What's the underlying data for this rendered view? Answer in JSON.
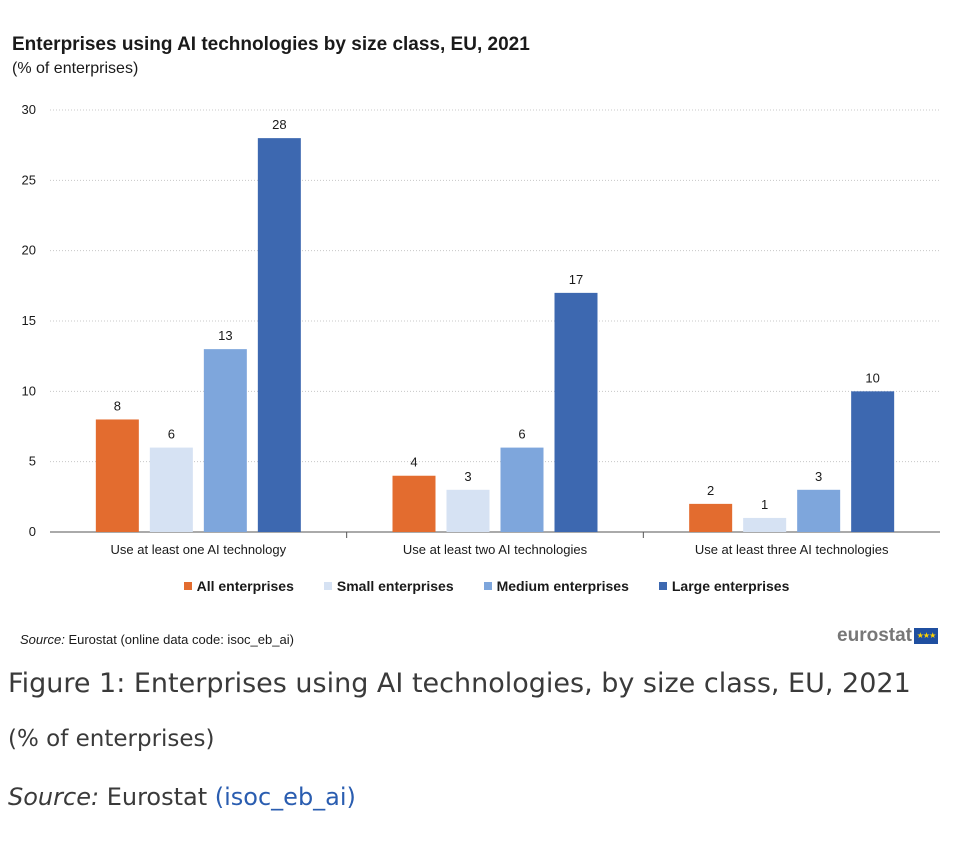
{
  "header": {
    "title": "Enterprises using AI technologies by size class, EU, 2021",
    "subtitle": "(% of enterprises)"
  },
  "chart_data": {
    "type": "bar",
    "title": "Enterprises using AI technologies by size class, EU, 2021",
    "subtitle": "(% of enterprises)",
    "categories": [
      "Use at least one AI technology",
      "Use at least two AI technologies",
      "Use at least three AI technologies"
    ],
    "series": [
      {
        "name": "All enterprises",
        "color": "#e36c2f",
        "values": [
          8,
          4,
          2
        ]
      },
      {
        "name": "Small enterprises",
        "color": "#d6e2f3",
        "values": [
          6,
          3,
          1
        ]
      },
      {
        "name": "Medium enterprises",
        "color": "#7ea6dc",
        "values": [
          13,
          6,
          3
        ]
      },
      {
        "name": "Large enterprises",
        "color": "#3d68b0",
        "values": [
          28,
          17,
          10
        ]
      }
    ],
    "ylim": [
      0,
      30
    ],
    "yticks": [
      0,
      5,
      10,
      15,
      20,
      25,
      30
    ],
    "grid": true,
    "legend_position": "bottom"
  },
  "source": {
    "prefix": "Source:",
    "text": "Eurostat (online data code: isoc_eb_ai)"
  },
  "logo": {
    "text": "eurostat",
    "flag_stars": "★★★"
  },
  "caption": {
    "title": "Figure 1: Enterprises using AI technologies, by size class, EU, 2021",
    "subtitle": "(% of enterprises)",
    "source_prefix": "Source:",
    "source_text": "Eurostat",
    "source_link": "(isoc_eb_ai)"
  }
}
